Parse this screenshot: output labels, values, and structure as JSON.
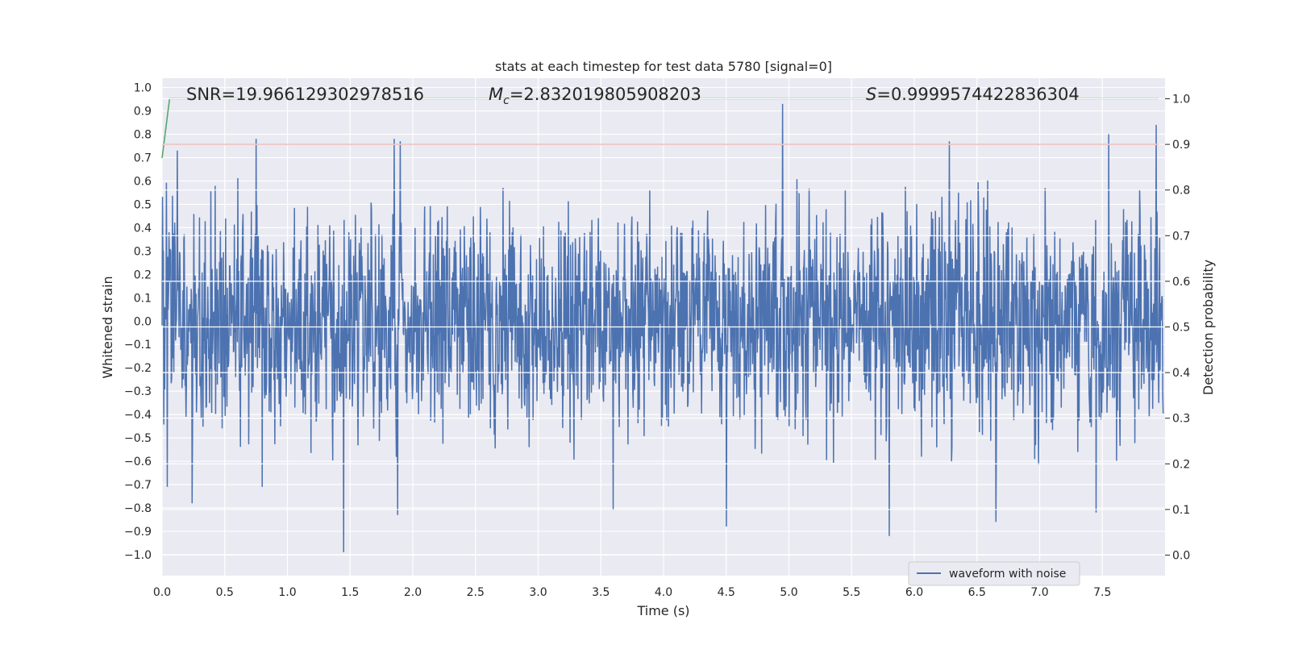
{
  "chart_data": {
    "type": "line",
    "title": "stats at each timestep for test data 5780 [signal=0]",
    "xlabel": "Time (s)",
    "ylabel_left": "Whitened strain",
    "ylabel_right": "Detection probability",
    "xlim": [
      0.0,
      8.0
    ],
    "ylim_left": [
      -1.09,
      1.04
    ],
    "ylim_right": [
      -0.045,
      1.045
    ],
    "x_ticks": [
      0.0,
      0.5,
      1.0,
      1.5,
      2.0,
      2.5,
      3.0,
      3.5,
      4.0,
      4.5,
      5.0,
      5.5,
      6.0,
      6.5,
      7.0,
      7.5
    ],
    "x_tick_labels": [
      "0.0",
      "0.5",
      "1.0",
      "1.5",
      "2.0",
      "2.5",
      "3.0",
      "3.5",
      "4.0",
      "4.5",
      "5.0",
      "5.5",
      "6.0",
      "6.5",
      "7.0",
      "7.5"
    ],
    "y_left_ticks": [
      1.0,
      0.9,
      0.8,
      0.7,
      0.6,
      0.5,
      0.4,
      0.3,
      0.2,
      0.1,
      0.0,
      -0.1,
      -0.2,
      -0.3,
      -0.4,
      -0.5,
      -0.6,
      -0.7,
      -0.8,
      -0.9,
      -1.0
    ],
    "y_left_tick_labels": [
      "1.0",
      "0.9",
      "0.8",
      "0.7",
      "0.6",
      "0.5",
      "0.4",
      "0.3",
      "0.2",
      "0.1",
      "0.0",
      "−0.1",
      "−0.2",
      "−0.3",
      "−0.4",
      "−0.5",
      "−0.6",
      "−0.7",
      "−0.8",
      "−0.9",
      "−1.0"
    ],
    "y_right_ticks": [
      1.0,
      0.9,
      0.8,
      0.7,
      0.6,
      0.5,
      0.4,
      0.3,
      0.2,
      0.1,
      0.0
    ],
    "y_right_tick_labels": [
      "1.0",
      "0.9",
      "0.8",
      "0.7",
      "0.6",
      "0.5",
      "0.4",
      "0.3",
      "0.2",
      "0.1",
      "0.0"
    ],
    "annotations": {
      "snr": "SNR=19.966129302978516",
      "mc_symbol": "M",
      "mc_sub": "c",
      "mc_value": "=2.832019805908203",
      "s_symbol": "S",
      "s_value": "=0.9999574422836304"
    },
    "legend": {
      "position": "lower-right",
      "entries": [
        "waveform with noise"
      ]
    },
    "series": [
      {
        "name": "waveform with noise",
        "axis": "left",
        "color": "#4c72b0",
        "description": "dense noisy whitened strain, mostly within ±0.5",
        "peaks": [
          [
            0.04,
            0.69
          ],
          [
            0.12,
            0.73
          ],
          [
            0.75,
            0.78
          ],
          [
            1.85,
            0.78
          ],
          [
            1.9,
            0.77
          ],
          [
            4.95,
            0.93
          ],
          [
            6.28,
            0.77
          ],
          [
            7.55,
            0.8
          ],
          [
            7.93,
            0.84
          ]
        ],
        "troughs": [
          [
            0.04,
            -0.71
          ],
          [
            0.24,
            -0.78
          ],
          [
            0.8,
            -0.71
          ],
          [
            1.45,
            -0.99
          ],
          [
            1.88,
            -0.83
          ],
          [
            3.6,
            -0.81
          ],
          [
            4.5,
            -0.88
          ],
          [
            5.8,
            -0.92
          ],
          [
            6.65,
            -0.86
          ],
          [
            7.45,
            -0.82
          ]
        ]
      },
      {
        "name": "threshold",
        "axis": "right",
        "color": "#c44e52",
        "x": [
          0.0,
          7.95
        ],
        "y": [
          0.9,
          0.9
        ]
      },
      {
        "name": "detection probability",
        "axis": "right",
        "color": "#55a868",
        "x": [
          0.0,
          0.06,
          7.95
        ],
        "y": [
          0.87,
          1.0,
          1.0
        ]
      }
    ],
    "colors": {
      "plot_bg": "#eaeaf2",
      "grid": "#ffffff",
      "waveform": "#4c72b0",
      "threshold": "#c44e52",
      "probability": "#55a868"
    }
  }
}
